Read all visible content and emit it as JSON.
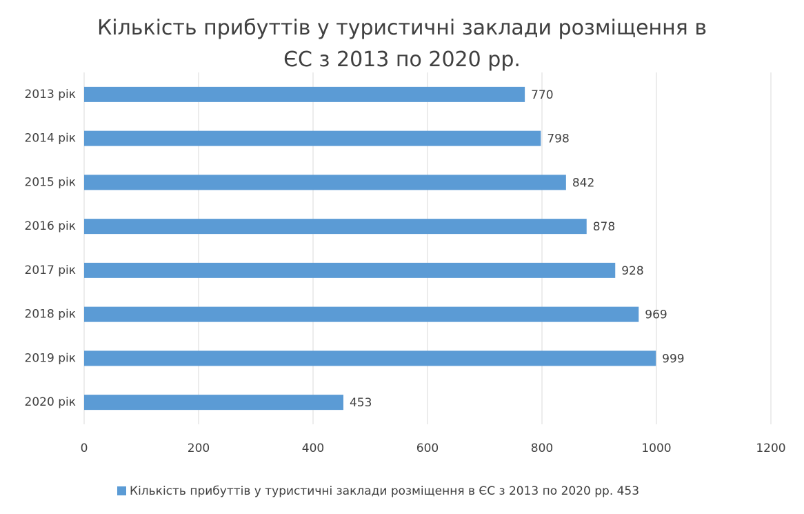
{
  "chart_data": {
    "type": "bar",
    "orientation": "horizontal",
    "title": "Кількість прибуттів у туристичні заклади розміщення в ЄС з 2013 по 2020 рр.",
    "categories": [
      "2013 рік",
      "2014 рік",
      "2015 рік",
      "2016 рік",
      "2017 рік",
      "2018 рік",
      "2019 рік",
      "2020 рік"
    ],
    "series": [
      {
        "name": "Кількість прибуттів у туристичні заклади розміщення в ЄС з 2013 по 2020 рр. 453",
        "color": "#5b9bd5",
        "values": [
          770,
          798,
          842,
          878,
          928,
          969,
          999,
          453
        ]
      }
    ],
    "xlim": [
      0,
      1200
    ],
    "xticks": [
      0,
      200,
      400,
      600,
      800,
      1000,
      1200
    ],
    "grid": true,
    "legend": "bottom"
  }
}
